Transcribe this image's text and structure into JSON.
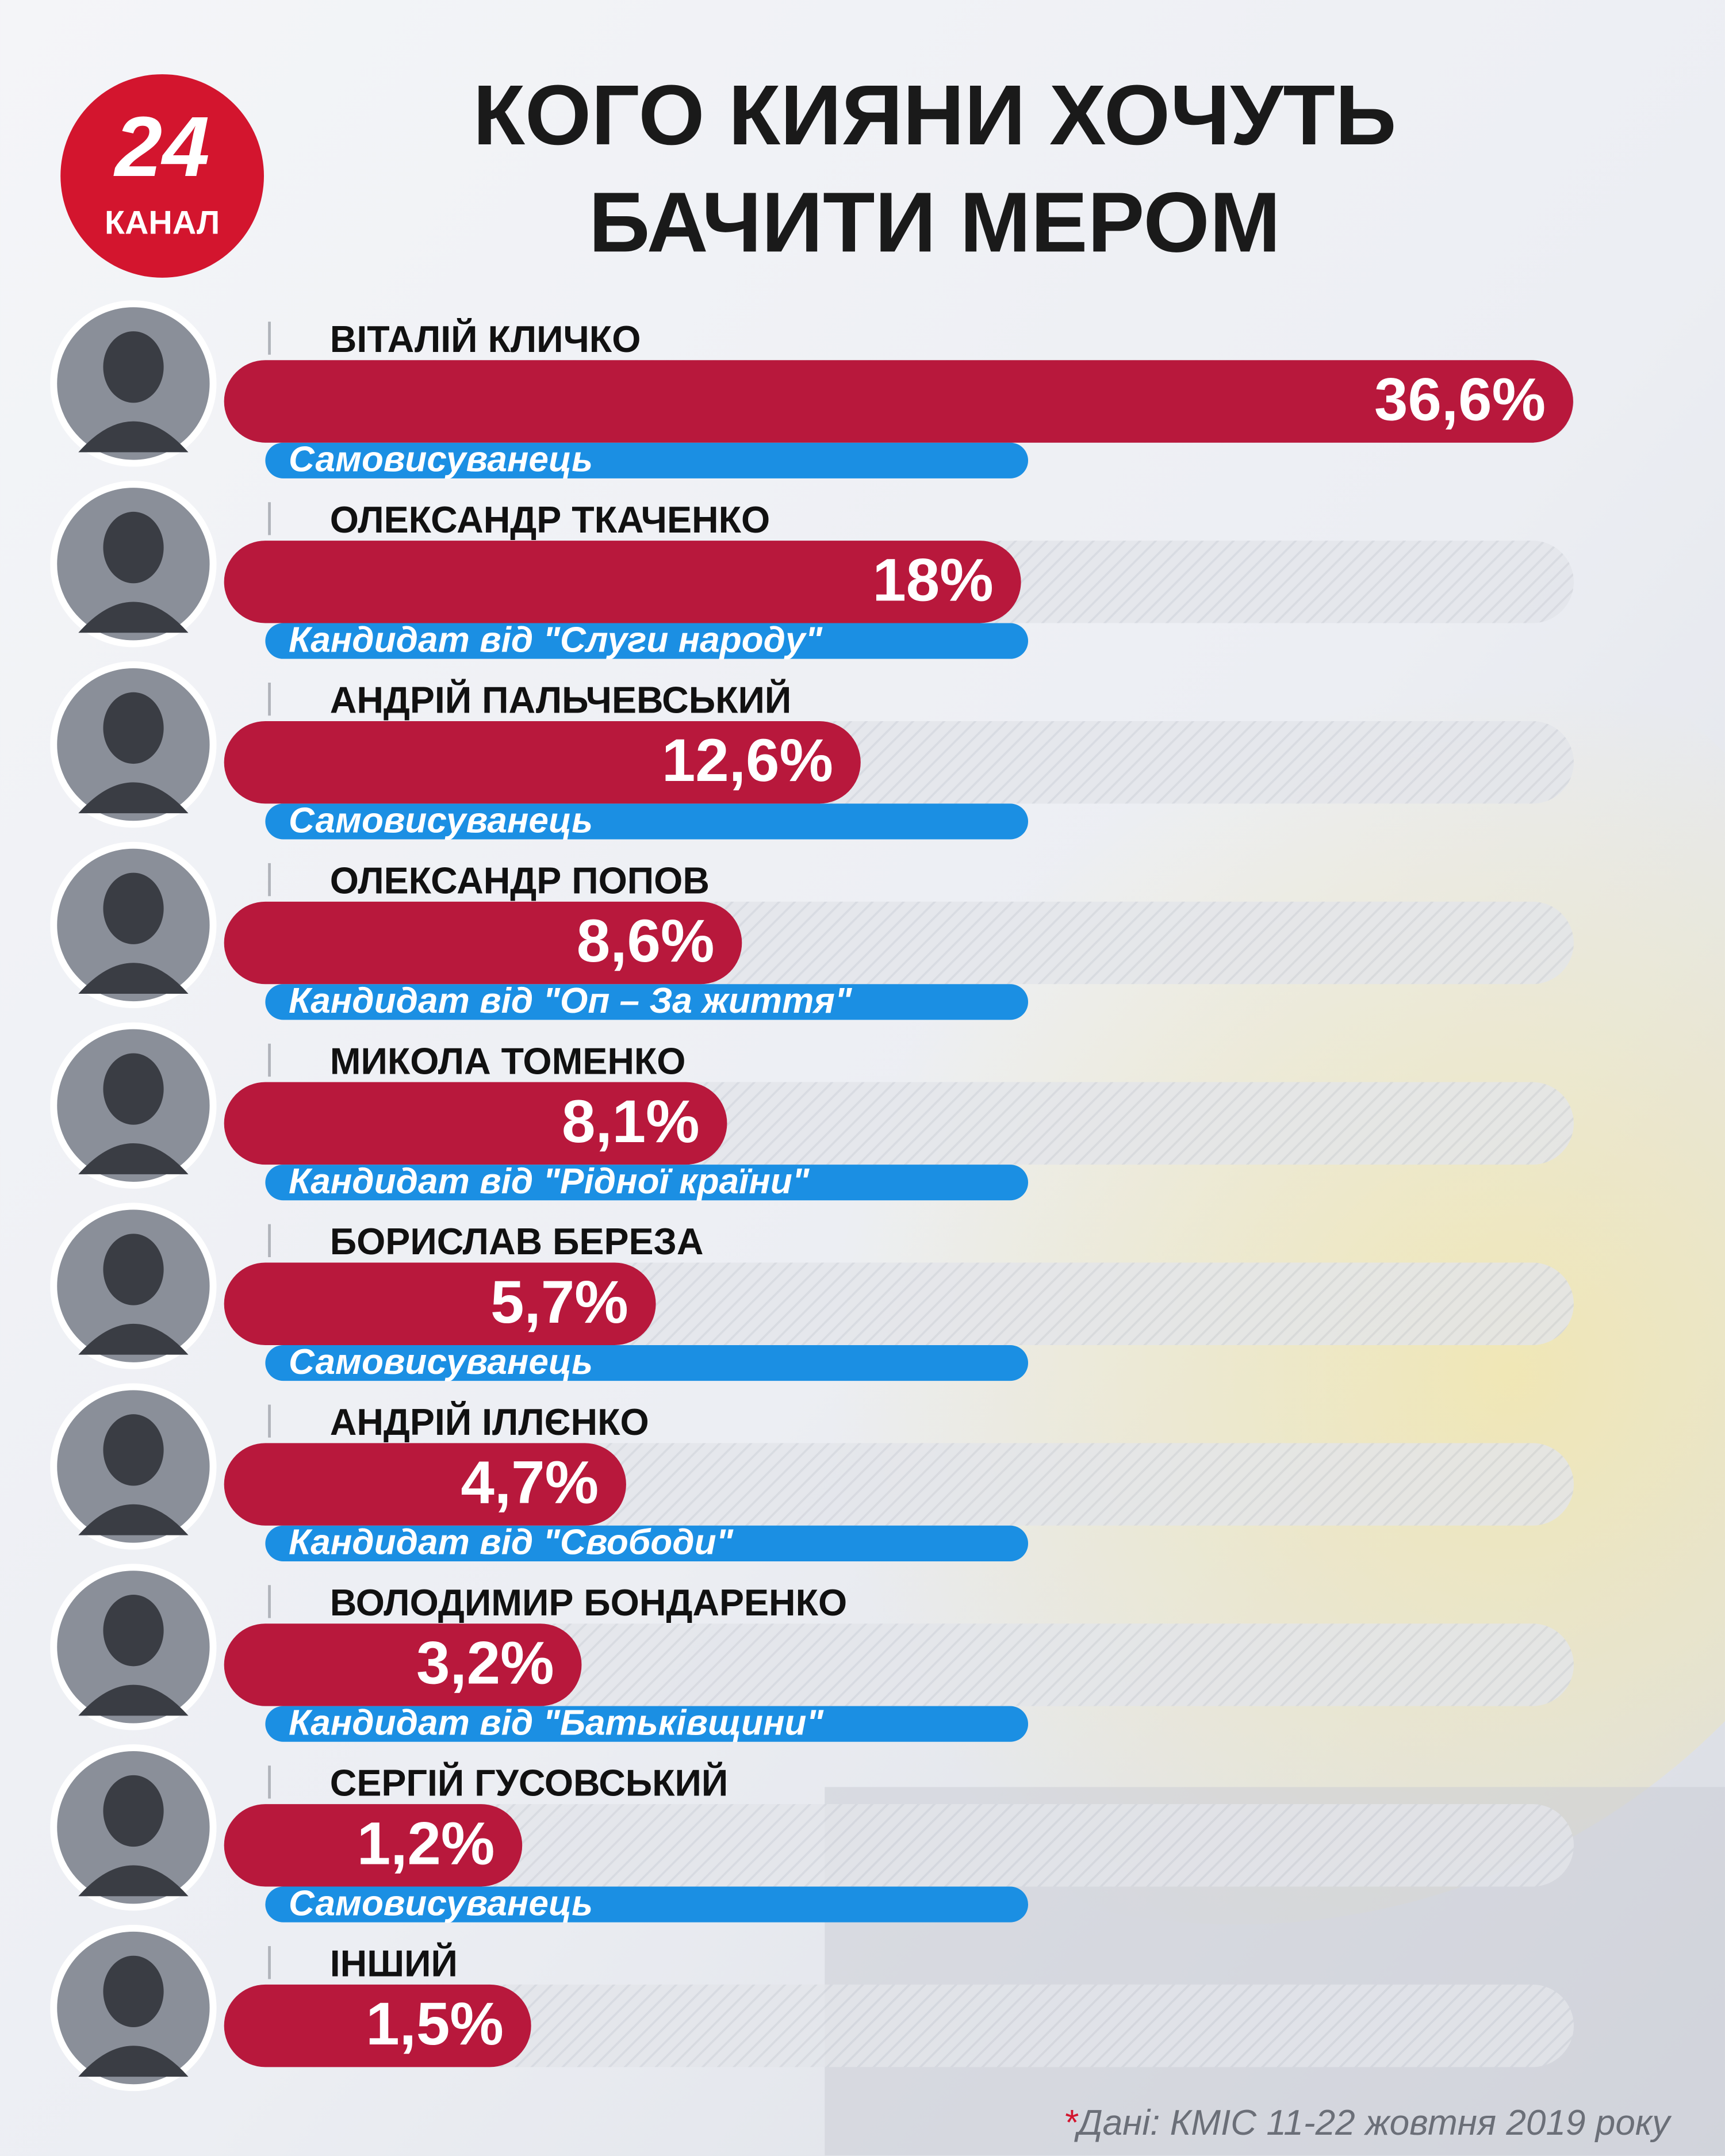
{
  "chart_data": {
    "type": "bar",
    "title": [
      "КОГО КИЯНИ ХОЧУТЬ",
      "БАЧИТИ МЕРОМ"
    ],
    "logo": {
      "number": "24",
      "name": "КАНАЛ"
    },
    "categories": [
      "ВІТАЛІЙ КЛИЧКО",
      "ОЛЕКСАНДР ТКАЧЕНКО",
      "АНДРІЙ ПАЛЬЧЕВСЬКИЙ",
      "ОЛЕКСАНДР ПОПОВ",
      "МИКОЛА ТОМЕНКО",
      "БОРИСЛАВ БЕРЕЗА",
      "АНДРІЙ ІЛЛЄНКО",
      "ВОЛОДИМИР БОНДАРЕНКО",
      "СЕРГІЙ ГУСОВСЬКИЙ",
      "ІНШИЙ"
    ],
    "subtitles": [
      "Самовисуванець",
      "Кандидат від \"Слуги народу\"",
      "Самовисуванець",
      "Кандидат від \"Оп – За життя\"",
      "Кандидат від \"Рідної країни\"",
      "Самовисуванець",
      "Кандидат від \"Свободи\"",
      "Кандидат від \"Батьківщини\"",
      "Самовисуванець",
      null
    ],
    "values": [
      36.6,
      18,
      12.6,
      8.6,
      8.1,
      5.7,
      4.7,
      3.2,
      1.2,
      1.5
    ],
    "value_labels": [
      "36,6%",
      "18%",
      "12,6%",
      "8,6%",
      "8,1%",
      "5,7%",
      "4,7%",
      "3,2%",
      "1,2%",
      "1,5%"
    ],
    "color": "#b8183c",
    "subtitle_color": "#1b8fe3",
    "source_mark": "*",
    "source": "Дані: КМІС 11-22 жовтня 2019 року"
  }
}
